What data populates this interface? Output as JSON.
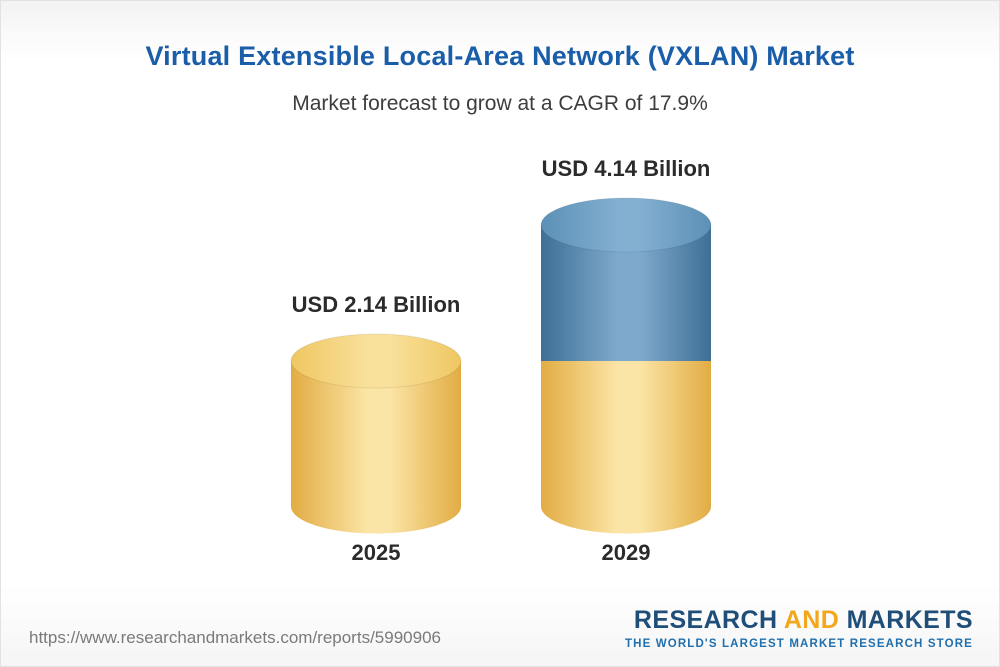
{
  "header": {
    "title": "Virtual Extensible Local-Area Network (VXLAN) Market",
    "subtitle": "Market forecast to grow at a CAGR of 17.9%"
  },
  "chart_data": {
    "type": "bar",
    "variant": "3d-cylinder-stacked",
    "title": "Virtual Extensible Local-Area Network (VXLAN) Market",
    "subtitle": "Market forecast to grow at a CAGR of 17.9%",
    "cagr": "17.9%",
    "unit": "USD Billion",
    "categories": [
      "2025",
      "2029"
    ],
    "totals": [
      2.14,
      4.14
    ],
    "value_labels": [
      "USD 2.14 Billion",
      "USD 4.14 Billion"
    ],
    "series": [
      {
        "name": "base-2025-value",
        "color": "gold",
        "values": [
          2.14,
          2.14
        ]
      },
      {
        "name": "growth-to-2029",
        "color": "blue",
        "values": [
          0,
          2.0
        ]
      }
    ],
    "ylim": [
      0,
      4.14
    ],
    "grid": false,
    "legend": "none",
    "colors": {
      "gold": {
        "edge": "#E2AC43",
        "mid": "#FBE5A6",
        "cap_edge": "#EFC761",
        "cap_mid": "#F9E09B"
      },
      "blue": {
        "edge": "#3E6F96",
        "mid": "#7FA9CC",
        "cap_edge": "#5C90B6",
        "cap_mid": "#83AFD1"
      }
    }
  },
  "footer": {
    "url": "https://www.researchandmarkets.com/reports/5990906",
    "logo": {
      "research": "RESEARCH",
      "and": "AND",
      "markets": "MARKETS",
      "tagline": "THE WORLD'S LARGEST MARKET RESEARCH STORE"
    }
  }
}
